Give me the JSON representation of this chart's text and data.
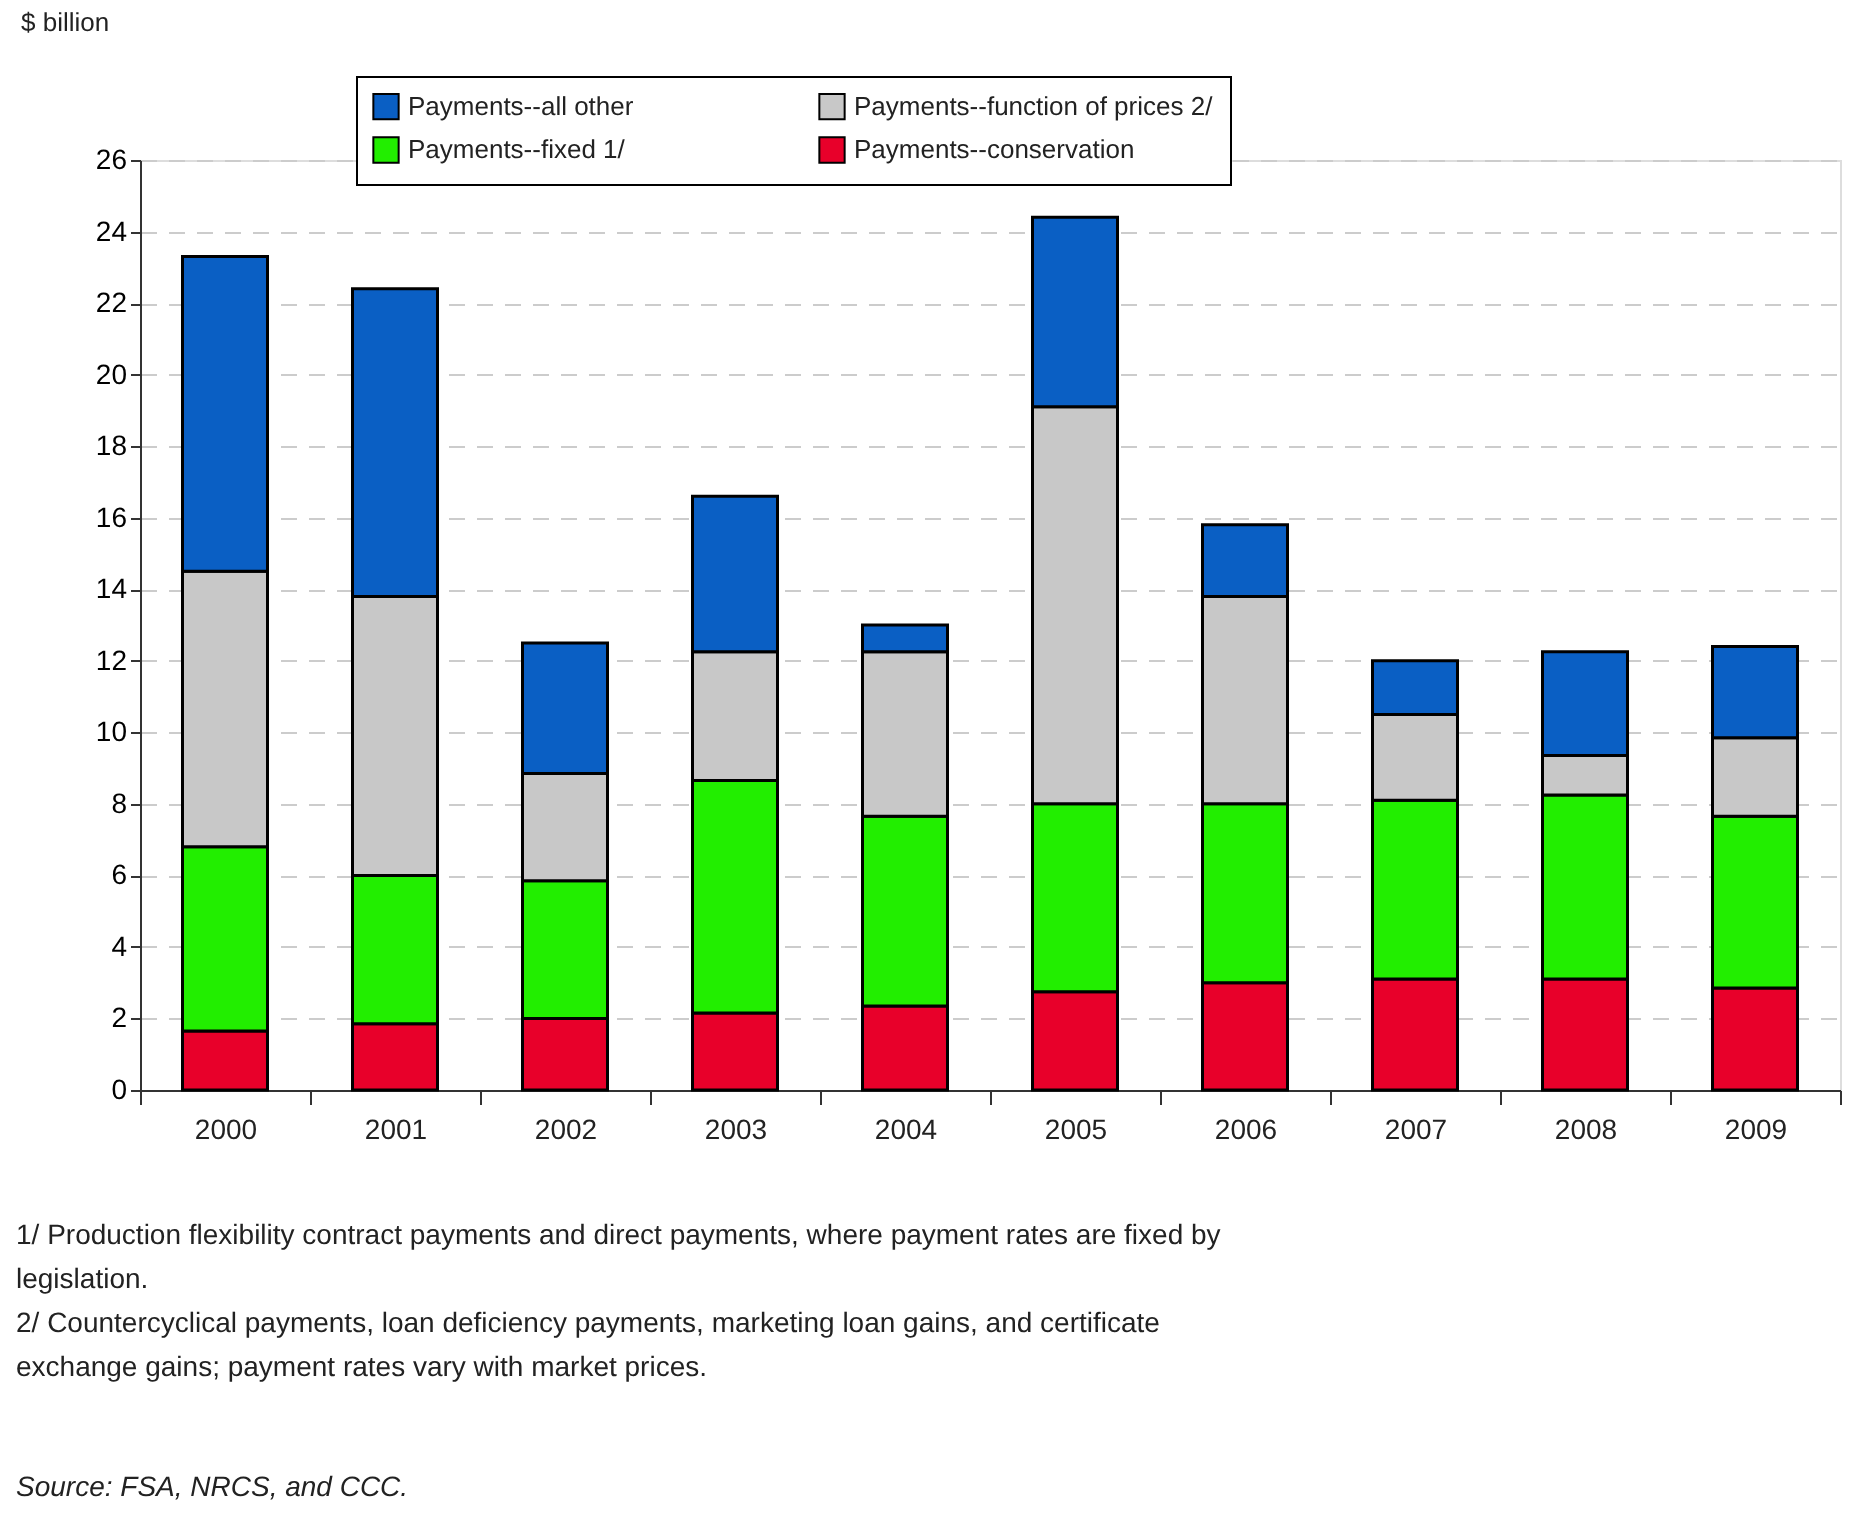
{
  "chart_data": {
    "type": "bar",
    "stacked": true,
    "ylabel": "$ billion",
    "categories": [
      "2000",
      "2001",
      "2002",
      "2003",
      "2004",
      "2005",
      "2006",
      "2007",
      "2008",
      "2009"
    ],
    "series": [
      {
        "name": "Payments--conservation",
        "color": "#e8002a",
        "values": [
          1.65,
          1.85,
          2.0,
          2.15,
          2.35,
          2.75,
          3.0,
          3.1,
          3.1,
          2.85
        ]
      },
      {
        "name": "Payments--fixed 1/",
        "color": "#22ee00",
        "values": [
          5.15,
          4.15,
          3.85,
          6.5,
          5.3,
          5.25,
          5.0,
          5.0,
          5.15,
          4.8
        ]
      },
      {
        "name": "Payments--function of prices 2/",
        "color": "#c8c8c8",
        "values": [
          7.7,
          7.8,
          3.0,
          3.6,
          4.6,
          11.1,
          5.8,
          2.4,
          1.1,
          2.2
        ]
      },
      {
        "name": "Payments--all other",
        "color": "#0a5fc4",
        "values": [
          8.8,
          8.6,
          3.65,
          4.35,
          0.75,
          5.3,
          2.0,
          1.5,
          2.9,
          2.55
        ]
      }
    ],
    "ylim": [
      0,
      26
    ],
    "yticks": [
      0,
      2,
      4,
      6,
      8,
      10,
      12,
      14,
      16,
      18,
      20,
      22,
      24,
      26
    ],
    "grid": "y",
    "legend": "top",
    "annotations": [
      "1/ Production flexibility contract payments and direct payments, where payment rates are fixed by legislation.",
      "2/ Countercyclical payments, loan deficiency payments, marketing loan gains, and certificate exchange gains; payment rates vary with market prices.",
      "Source: FSA, NRCS, and CCC."
    ]
  }
}
